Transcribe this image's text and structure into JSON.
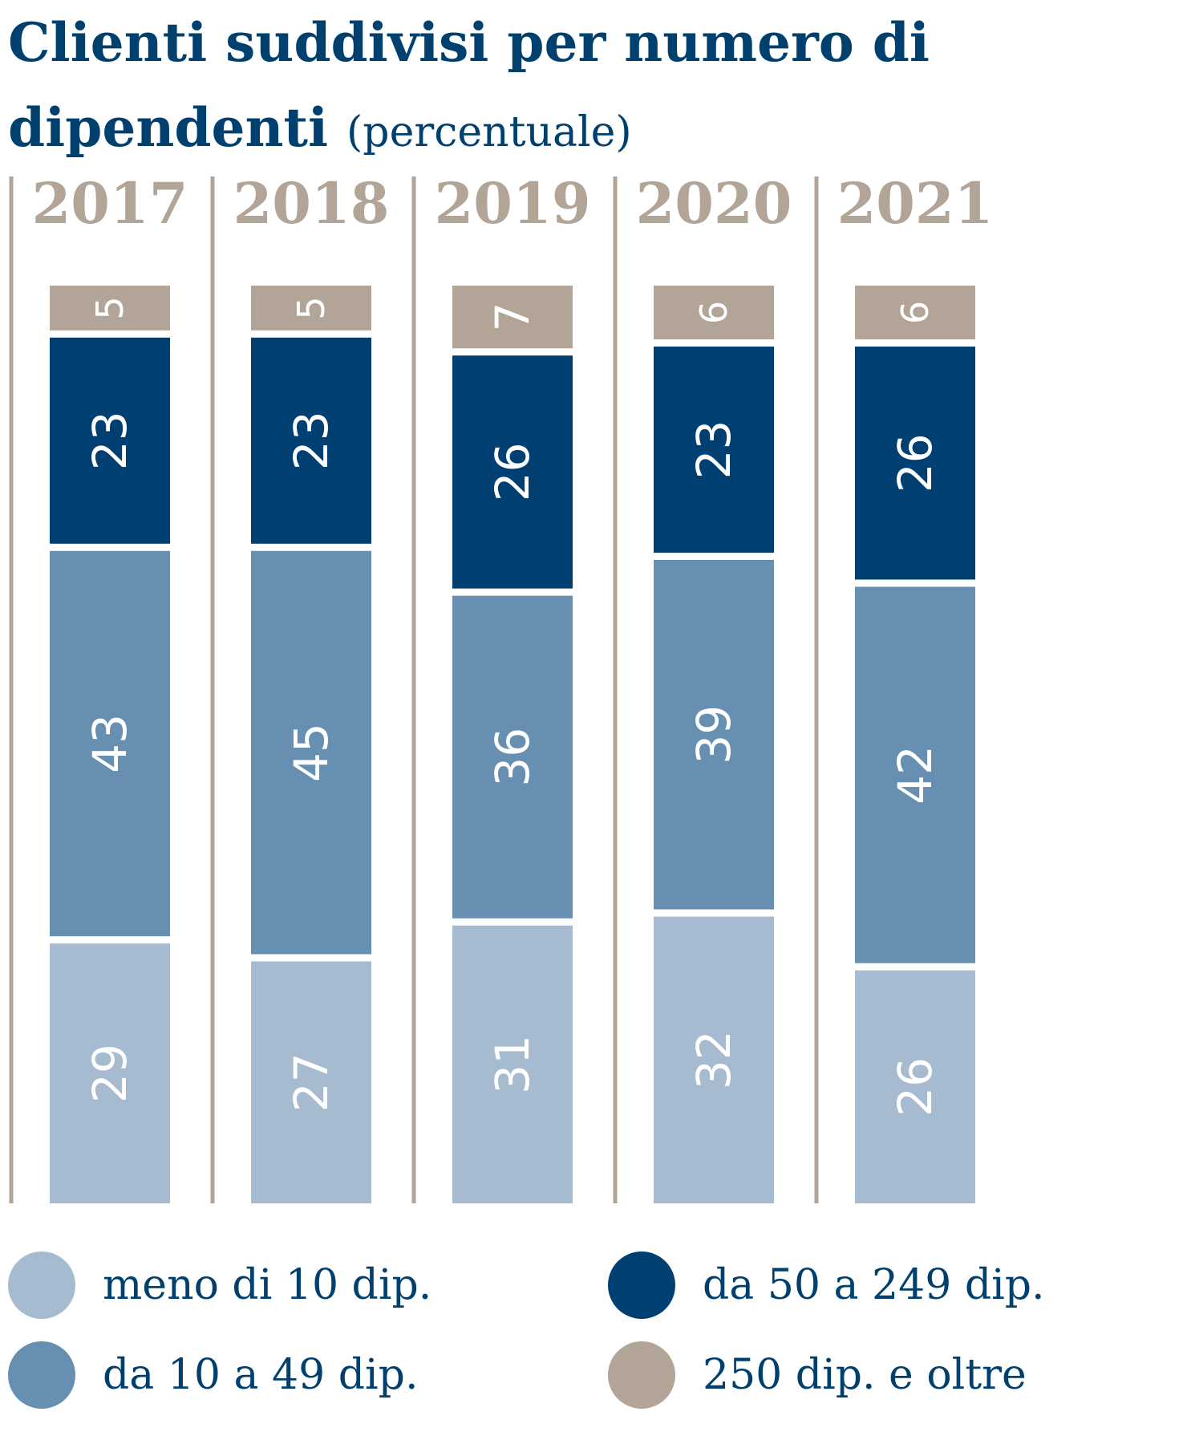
{
  "title": {
    "main": "Clienti suddivisi per numero di dipendenti",
    "unit": "(percentuale)"
  },
  "colors": {
    "title": "#00406f",
    "year_label": "#b2a597",
    "divider": "#b2a597",
    "segment_label": "#ffffff"
  },
  "chart_data": {
    "type": "bar",
    "stacked": true,
    "orientation": "vertical",
    "value_labels_rotated": true,
    "categories": [
      "2017",
      "2018",
      "2019",
      "2020",
      "2021"
    ],
    "series": [
      {
        "name": "meno di 10 dip.",
        "color": "#a6bbd0",
        "values": [
          29,
          27,
          31,
          32,
          26
        ]
      },
      {
        "name": "da 10 a 49 dip.",
        "color": "#678fb1",
        "values": [
          43,
          45,
          36,
          39,
          42
        ]
      },
      {
        "name": "da 50 a 249 dip.",
        "color": "#003f72",
        "values": [
          23,
          23,
          26,
          23,
          26
        ]
      },
      {
        "name": "250 dip. e oltre",
        "color": "#b2a597",
        "values": [
          5,
          5,
          7,
          6,
          6
        ]
      }
    ],
    "legend_position": "bottom",
    "grid": false
  },
  "legend": {
    "items": [
      {
        "label": "meno di 10 dip.",
        "color": "#a6bbd0"
      },
      {
        "label": "da 10 a 49 dip.",
        "color": "#678fb1"
      },
      {
        "label": "da 50 a 249 dip.",
        "color": "#003f72"
      },
      {
        "label": "250 dip. e oltre",
        "color": "#b2a597"
      }
    ]
  }
}
